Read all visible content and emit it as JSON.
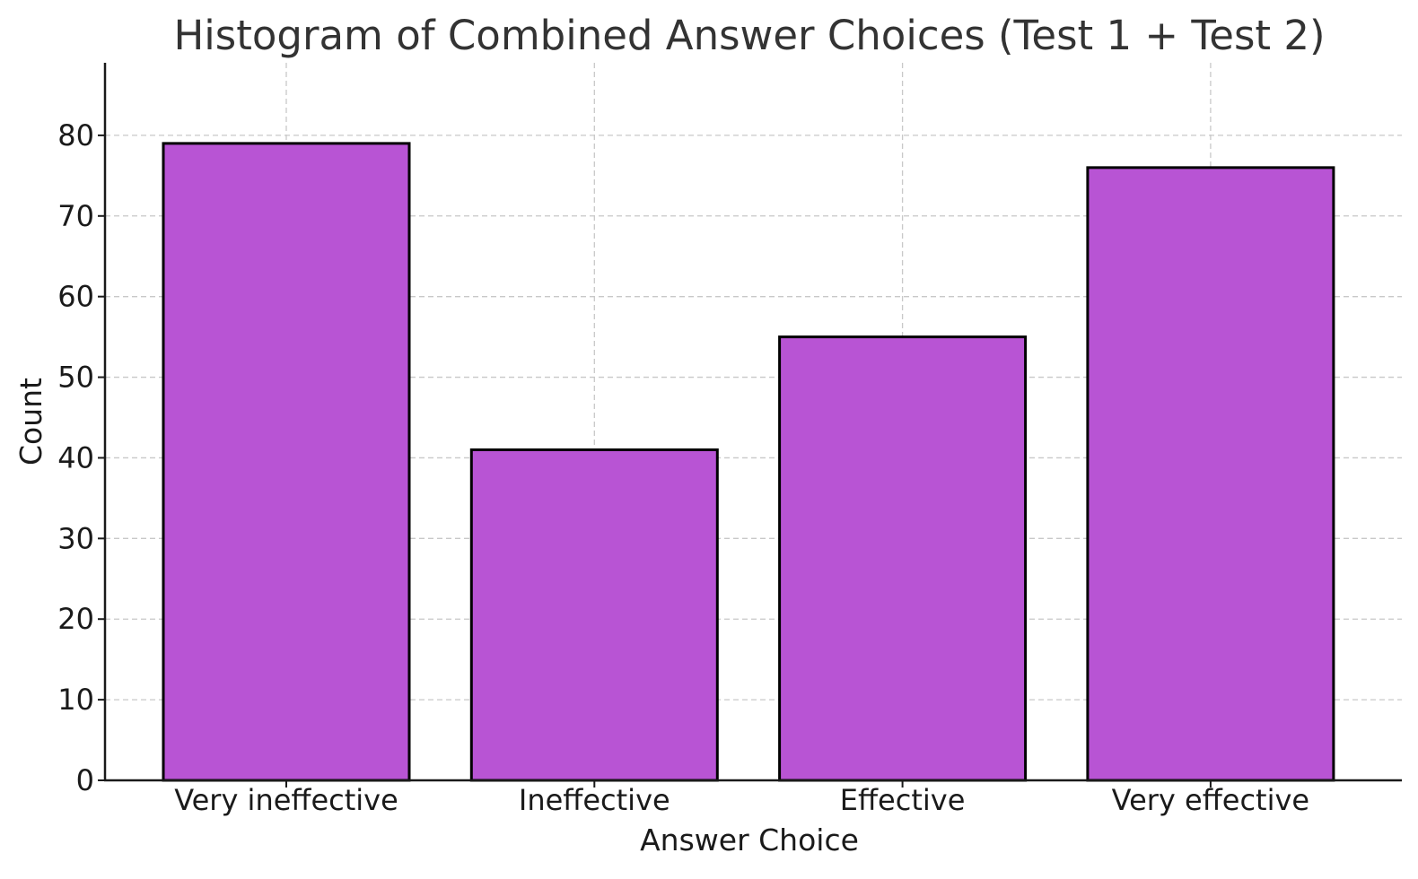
{
  "chart_data": {
    "type": "bar",
    "title": "Histogram of Combined Answer Choices (Test 1 + Test 2)",
    "xlabel": "Answer Choice",
    "ylabel": "Count",
    "categories": [
      "Very ineffective",
      "Ineffective",
      "Effective",
      "Very effective"
    ],
    "values": [
      79,
      41,
      55,
      76
    ],
    "ylim": [
      0,
      89
    ],
    "yticks": [
      "0",
      "10",
      "20",
      "30",
      "40",
      "50",
      "60",
      "70",
      "80"
    ],
    "grid": true,
    "bar_color": "#b854d4",
    "edge_color": "#000000"
  }
}
